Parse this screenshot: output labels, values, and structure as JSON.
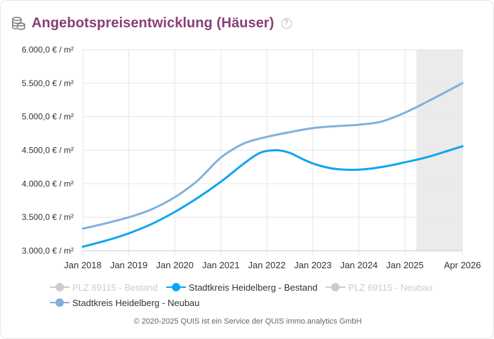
{
  "header": {
    "title": "Angebotspreisentwicklung (Häuser)",
    "help_symbol": "?"
  },
  "colors": {
    "title": "#8a3d77",
    "bestand_heidelberg": "#0ea5f0",
    "neubau_heidelberg": "#82b0dc",
    "inactive": "#cccccc",
    "forecast_band": "#ebebeb"
  },
  "chart_data": {
    "type": "line",
    "title": "Angebotspreisentwicklung (Häuser)",
    "xlabel": "",
    "ylabel": "",
    "ylim": [
      3000,
      6000
    ],
    "yticks": [
      {
        "value": 3000,
        "label": "3.000,0 € / m²"
      },
      {
        "value": 3500,
        "label": "3.500,0 € / m²"
      },
      {
        "value": 4000,
        "label": "4.000,0 € / m²"
      },
      {
        "value": 4500,
        "label": "4.500,0 € / m²"
      },
      {
        "value": 5000,
        "label": "5.000,0 € / m²"
      },
      {
        "value": 5500,
        "label": "5.500,0 € / m²"
      },
      {
        "value": 6000,
        "label": "6.000,0 € / m²"
      }
    ],
    "xlim": [
      2018.0,
      2026.25
    ],
    "xticks": [
      {
        "value": 2018.0,
        "label": "Jan 2018"
      },
      {
        "value": 2019.0,
        "label": "Jan 2019"
      },
      {
        "value": 2020.0,
        "label": "Jan 2020"
      },
      {
        "value": 2021.0,
        "label": "Jan 2021"
      },
      {
        "value": 2022.0,
        "label": "Jan 2022"
      },
      {
        "value": 2023.0,
        "label": "Jan 2023"
      },
      {
        "value": 2024.0,
        "label": "Jan 2024"
      },
      {
        "value": 2025.0,
        "label": "Jan 2025"
      },
      {
        "value": 2026.25,
        "label": "Apr 2026"
      }
    ],
    "forecast_start": 2025.25,
    "series": [
      {
        "name": "PLZ 69115 - Bestand",
        "visible": false,
        "color": "#cccccc",
        "x": [],
        "values": []
      },
      {
        "name": "Stadtkreis Heidelberg - Bestand",
        "visible": true,
        "color": "#0ea5f0",
        "x": [
          2018.0,
          2018.5,
          2019.0,
          2019.5,
          2020.0,
          2020.5,
          2021.0,
          2021.5,
          2021.85,
          2022.2,
          2022.5,
          2022.8,
          2023.1,
          2023.5,
          2024.0,
          2024.5,
          2025.0,
          2025.5,
          2026.25
        ],
        "values": [
          3060,
          3150,
          3260,
          3400,
          3580,
          3790,
          4030,
          4300,
          4460,
          4500,
          4460,
          4360,
          4280,
          4220,
          4210,
          4250,
          4320,
          4400,
          4560
        ]
      },
      {
        "name": "PLZ 69115 - Neubau",
        "visible": false,
        "color": "#cccccc",
        "x": [],
        "values": []
      },
      {
        "name": "Stadtkreis Heidelberg - Neubau",
        "visible": true,
        "color": "#82b0dc",
        "x": [
          2018.0,
          2018.5,
          2019.0,
          2019.5,
          2020.0,
          2020.5,
          2021.0,
          2021.5,
          2022.0,
          2022.5,
          2023.0,
          2023.5,
          2024.0,
          2024.5,
          2025.0,
          2025.5,
          2026.0,
          2026.25
        ],
        "values": [
          3330,
          3410,
          3500,
          3620,
          3800,
          4050,
          4390,
          4600,
          4700,
          4770,
          4830,
          4860,
          4880,
          4930,
          5060,
          5230,
          5410,
          5500
        ]
      }
    ]
  },
  "legend": {
    "items": [
      {
        "label": "PLZ 69115 - Bestand",
        "active": false
      },
      {
        "label": "Stadtkreis Heidelberg - Bestand",
        "active": true
      },
      {
        "label": "PLZ 69115 - Neubau",
        "active": false
      },
      {
        "label": "Stadtkreis Heidelberg - Neubau",
        "active": true
      }
    ]
  },
  "footer": {
    "text": "© 2020-2025 QUIS ist ein Service der QUIS immo.analytics GmbH"
  }
}
